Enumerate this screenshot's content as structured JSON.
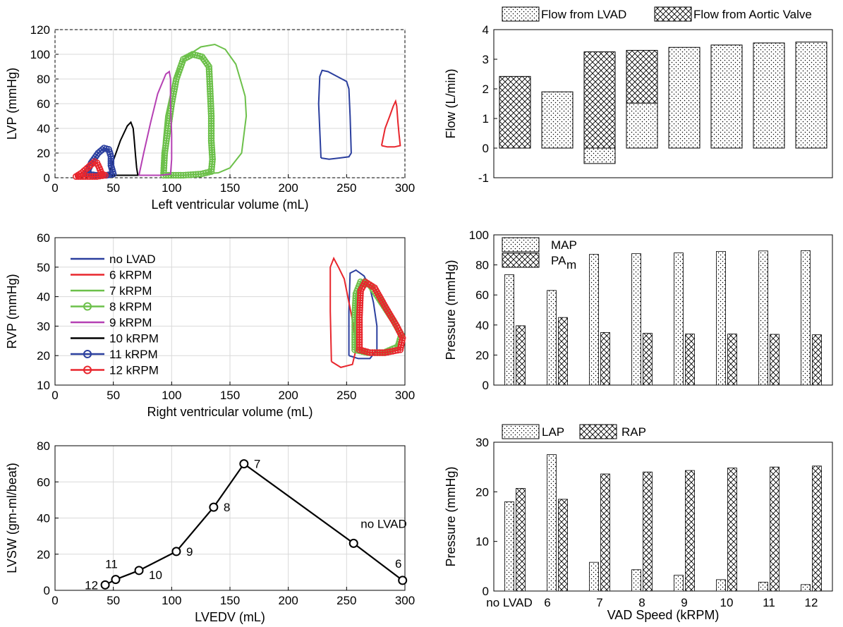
{
  "colors": {
    "no_lvad": "#2b3f9e",
    "k6": "#e8262d",
    "k7": "#6cc04a",
    "k8": "#6cc04a",
    "k9": "#b540b3",
    "k10": "#000000",
    "k11": "#2b3f9e",
    "k12": "#e8262d"
  },
  "chart_data": [
    {
      "id": "lvp",
      "type": "line",
      "title": "",
      "xlabel": "Left ventricular volume (mL)",
      "ylabel": "LVP (mmHg)",
      "xlim": [
        0,
        300
      ],
      "ylim": [
        0,
        120
      ],
      "xticks": [
        "0",
        "50",
        "100",
        "150",
        "200",
        "250",
        "300"
      ],
      "yticks": [
        "0",
        "20",
        "40",
        "60",
        "80",
        "100",
        "120"
      ],
      "grid": true,
      "series": [
        {
          "name": "no LVAD",
          "color": "no_lvad",
          "marker": false,
          "points": [
            [
              228,
              16
            ],
            [
              226,
              60
            ],
            [
              227,
              82
            ],
            [
              229,
              87
            ],
            [
              234,
              86
            ],
            [
              242,
              82
            ],
            [
              250,
              78
            ],
            [
              252,
              72
            ],
            [
              253,
              50
            ],
            [
              254,
              20
            ],
            [
              252,
              17
            ],
            [
              244,
              16
            ],
            [
              235,
              15
            ],
            [
              228,
              16
            ]
          ]
        },
        {
          "name": "6 kRPM",
          "color": "k6",
          "marker": false,
          "points": [
            [
              280,
              26
            ],
            [
              283,
              40
            ],
            [
              287,
              50
            ],
            [
              290,
              58
            ],
            [
              292,
              62
            ],
            [
              293,
              58
            ],
            [
              294,
              45
            ],
            [
              295,
              35
            ],
            [
              296,
              26
            ],
            [
              291,
              25
            ],
            [
              285,
              25
            ],
            [
              280,
              26
            ]
          ]
        },
        {
          "name": "7 kRPM",
          "color": "k7",
          "marker": false,
          "points": [
            [
              92,
              2
            ],
            [
              93,
              30
            ],
            [
              95,
              50
            ],
            [
              102,
              80
            ],
            [
              112,
              98
            ],
            [
              125,
              106
            ],
            [
              137,
              108
            ],
            [
              146,
              104
            ],
            [
              155,
              92
            ],
            [
              160,
              76
            ],
            [
              163,
              66
            ],
            [
              164,
              50
            ],
            [
              160,
              20
            ],
            [
              150,
              8
            ],
            [
              140,
              4
            ],
            [
              125,
              3
            ],
            [
              110,
              2
            ],
            [
              92,
              2
            ]
          ]
        },
        {
          "name": "8 kRPM",
          "color": "k8",
          "marker": true,
          "points": [
            [
              93,
              2
            ],
            [
              94,
              20
            ],
            [
              97,
              40
            ],
            [
              100,
              60
            ],
            [
              104,
              80
            ],
            [
              110,
              96
            ],
            [
              118,
              100
            ],
            [
              126,
              98
            ],
            [
              132,
              90
            ],
            [
              133,
              70
            ],
            [
              134,
              50
            ],
            [
              134,
              30
            ],
            [
              135,
              15
            ],
            [
              134,
              5
            ],
            [
              125,
              3
            ],
            [
              110,
              2
            ],
            [
              93,
              2
            ]
          ]
        },
        {
          "name": "9 kRPM",
          "color": "k9",
          "marker": false,
          "points": [
            [
              72,
              2
            ],
            [
              76,
              20
            ],
            [
              82,
              45
            ],
            [
              88,
              68
            ],
            [
              95,
              84
            ],
            [
              98,
              86
            ],
            [
              99,
              80
            ],
            [
              99,
              60
            ],
            [
              100,
              35
            ],
            [
              100,
              15
            ],
            [
              99,
              3
            ],
            [
              90,
              2
            ],
            [
              80,
              2
            ],
            [
              72,
              2
            ]
          ]
        },
        {
          "name": "10 kRPM",
          "color": "k10",
          "marker": false,
          "points": [
            [
              46,
              2
            ],
            [
              50,
              14
            ],
            [
              56,
              30
            ],
            [
              62,
              42
            ],
            [
              65,
              45
            ],
            [
              67,
              40
            ],
            [
              68,
              30
            ],
            [
              69,
              18
            ],
            [
              70,
              8
            ],
            [
              71,
              2
            ],
            [
              65,
              2
            ],
            [
              55,
              2
            ],
            [
              46,
              2
            ]
          ]
        },
        {
          "name": "11 kRPM",
          "color": "k11",
          "marker": true,
          "points": [
            [
              27,
              3
            ],
            [
              31,
              12
            ],
            [
              37,
              20
            ],
            [
              42,
              24
            ],
            [
              46,
              23
            ],
            [
              48,
              17
            ],
            [
              48,
              10
            ],
            [
              50,
              3
            ],
            [
              44,
              2
            ],
            [
              35,
              2
            ],
            [
              27,
              3
            ]
          ]
        },
        {
          "name": "12 kRPM",
          "color": "k12",
          "marker": true,
          "points": [
            [
              18,
              1
            ],
            [
              23,
              4
            ],
            [
              29,
              9
            ],
            [
              34,
              13
            ],
            [
              36,
              12
            ],
            [
              38,
              8
            ],
            [
              40,
              3
            ],
            [
              43,
              2
            ],
            [
              36,
              1
            ],
            [
              26,
              1
            ],
            [
              18,
              1
            ]
          ]
        }
      ]
    },
    {
      "id": "rvp",
      "type": "line",
      "title": "",
      "xlabel": "Right ventricular volume (mL)",
      "ylabel": "RVP (mmHg)",
      "xlim": [
        0,
        300
      ],
      "ylim": [
        10,
        60
      ],
      "xticks": [
        "0",
        "50",
        "100",
        "150",
        "200",
        "250",
        "300"
      ],
      "yticks": [
        "10",
        "20",
        "30",
        "40",
        "50",
        "60"
      ],
      "grid": true,
      "legend": {
        "placement": "top-left",
        "entries": [
          {
            "label": "no LVAD",
            "color": "no_lvad",
            "marker": false
          },
          {
            "label": "6 kRPM",
            "color": "k6",
            "marker": false
          },
          {
            "label": "7 kRPM",
            "color": "k7",
            "marker": false
          },
          {
            "label": "8 kRPM",
            "color": "k8",
            "marker": true
          },
          {
            "label": "9 kRPM",
            "color": "k9",
            "marker": false
          },
          {
            "label": "10 kRPM",
            "color": "k10",
            "marker": false
          },
          {
            "label": "11 kRPM",
            "color": "k11",
            "marker": true
          },
          {
            "label": "12 kRPM",
            "color": "k12",
            "marker": true
          }
        ]
      },
      "series": [
        {
          "name": "no LVAD",
          "color": "no_lvad",
          "marker": false,
          "points": [
            [
              252,
              20
            ],
            [
              252,
              35
            ],
            [
              253,
              48
            ],
            [
              258,
              49
            ],
            [
              265,
              47
            ],
            [
              270,
              43
            ],
            [
              273,
              38
            ],
            [
              276,
              30
            ],
            [
              276,
              22
            ],
            [
              270,
              19
            ],
            [
              260,
              19
            ],
            [
              252,
              20
            ]
          ]
        },
        {
          "name": "6 kRPM",
          "color": "k6",
          "marker": false,
          "points": [
            [
              237,
              18
            ],
            [
              236,
              35
            ],
            [
              236,
              50
            ],
            [
              239,
              53
            ],
            [
              243,
              50
            ],
            [
              248,
              46
            ],
            [
              251,
              40
            ],
            [
              256,
              30
            ],
            [
              258,
              22
            ],
            [
              255,
              17
            ],
            [
              245,
              16
            ],
            [
              237,
              18
            ]
          ]
        },
        {
          "name": "7 kRPM",
          "color": "k7",
          "marker": false,
          "points": [
            [
              258,
              23
            ],
            [
              258,
              35
            ],
            [
              260,
              43
            ],
            [
              265,
              46
            ],
            [
              272,
              43
            ],
            [
              282,
              36
            ],
            [
              292,
              30
            ],
            [
              296,
              26
            ],
            [
              292,
              22
            ],
            [
              280,
              21
            ],
            [
              265,
              21
            ],
            [
              258,
              23
            ]
          ]
        },
        {
          "name": "8 kRPM",
          "color": "k8",
          "marker": true,
          "points": [
            [
              257,
              22
            ],
            [
              257,
              33
            ],
            [
              258,
              41
            ],
            [
              262,
              45
            ],
            [
              270,
              44
            ],
            [
              280,
              38
            ],
            [
              290,
              32
            ],
            [
              297,
              27
            ],
            [
              294,
              23
            ],
            [
              282,
              21
            ],
            [
              268,
              21
            ],
            [
              257,
              22
            ]
          ]
        },
        {
          "name": "12 kRPM",
          "color": "k12",
          "marker": true,
          "points": [
            [
              261,
              22
            ],
            [
              261,
              33
            ],
            [
              262,
              42
            ],
            [
              266,
              45
            ],
            [
              274,
              43
            ],
            [
              284,
              36
            ],
            [
              293,
              30
            ],
            [
              298,
              26
            ],
            [
              296,
              22
            ],
            [
              283,
              21
            ],
            [
              270,
              21
            ],
            [
              261,
              22
            ]
          ]
        }
      ]
    },
    {
      "id": "lvsw",
      "type": "line",
      "title": "",
      "xlabel": "LVEDV (mL)",
      "ylabel": "LVSW (gm-ml/beat)",
      "xlim": [
        0,
        300
      ],
      "ylim": [
        0,
        80
      ],
      "xticks": [
        "0",
        "50",
        "100",
        "150",
        "200",
        "250",
        "300"
      ],
      "yticks": [
        "0",
        "20",
        "40",
        "60",
        "80"
      ],
      "grid": true,
      "points": [
        {
          "x": 43,
          "y": 3,
          "label": "12"
        },
        {
          "x": 52,
          "y": 6,
          "label": "11"
        },
        {
          "x": 72,
          "y": 11,
          "label": "10"
        },
        {
          "x": 104,
          "y": 21.5,
          "label": "9"
        },
        {
          "x": 136,
          "y": 46,
          "label": "8"
        },
        {
          "x": 162,
          "y": 70,
          "label": "7"
        },
        {
          "x": 256,
          "y": 26,
          "label": "no LVAD"
        },
        {
          "x": 298,
          "y": 5.5,
          "label": "6"
        }
      ]
    },
    {
      "id": "flow",
      "type": "bar",
      "title": "",
      "xlabel": "",
      "ylabel": "Flow (L/min)",
      "ylim": [
        -1,
        4
      ],
      "yticks": [
        "-1",
        "0",
        "1",
        "2",
        "3",
        "4"
      ],
      "categories": [
        "no LVAD",
        "6",
        "7",
        "8",
        "9",
        "10",
        "11",
        "12"
      ],
      "series": [
        {
          "name": "Flow from LVAD",
          "pattern": "dots",
          "values": [
            0,
            1.9,
            -0.52,
            1.52,
            3.4,
            3.48,
            3.55,
            3.58
          ]
        },
        {
          "name": "Flow from Aortic Valve",
          "pattern": "cross",
          "values": [
            2.42,
            0,
            3.25,
            1.78,
            0,
            0,
            0,
            0
          ]
        }
      ],
      "stacked": true,
      "legend": {
        "placement": "top"
      }
    },
    {
      "id": "pressure",
      "type": "bar",
      "title": "",
      "xlabel": "",
      "ylabel": "Pressure (mmHg)",
      "ylim": [
        0,
        100
      ],
      "yticks": [
        "0",
        "20",
        "40",
        "60",
        "80",
        "100"
      ],
      "categories": [
        "no LVAD",
        "6",
        "7",
        "8",
        "9",
        "10",
        "11",
        "12"
      ],
      "series": [
        {
          "name": "MAP",
          "pattern": "dots",
          "values": [
            73.5,
            63,
            87,
            87.5,
            88,
            89,
            89.3,
            89.5
          ]
        },
        {
          "name": "PA",
          "sub": "m",
          "pattern": "cross",
          "values": [
            39.5,
            45,
            35,
            34.5,
            34,
            34,
            33.8,
            33.5
          ]
        }
      ],
      "legend": {
        "placement": "top-left"
      }
    },
    {
      "id": "atrial",
      "type": "bar",
      "title": "",
      "xlabel": "VAD Speed (kRPM)",
      "ylabel": "Pressure (mmHg)",
      "ylim": [
        0,
        30
      ],
      "yticks": [
        "0",
        "10",
        "20",
        "30"
      ],
      "categories": [
        "no LVAD",
        "6",
        "7",
        "8",
        "9",
        "10",
        "11",
        "12"
      ],
      "series": [
        {
          "name": "LAP",
          "pattern": "dots",
          "values": [
            18,
            27.5,
            5.8,
            4.3,
            3.2,
            2.3,
            1.8,
            1.3
          ]
        },
        {
          "name": "RAP",
          "pattern": "cross",
          "values": [
            20.7,
            18.5,
            23.6,
            24,
            24.3,
            24.8,
            25,
            25.2
          ]
        }
      ],
      "legend": {
        "placement": "top"
      }
    }
  ]
}
